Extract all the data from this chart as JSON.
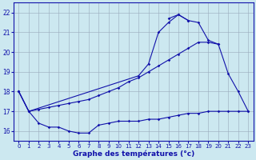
{
  "title": "Graphe des températures (°c)",
  "x_values": [
    0,
    1,
    2,
    3,
    4,
    5,
    6,
    7,
    8,
    9,
    10,
    11,
    12,
    13,
    14,
    15,
    16,
    17,
    18,
    19,
    20,
    21,
    22,
    23
  ],
  "line_low": [
    18.0,
    17.0,
    16.4,
    16.2,
    16.2,
    16.0,
    15.9,
    15.9,
    16.3,
    16.4,
    16.5,
    16.5,
    16.5,
    16.6,
    16.6,
    16.7,
    16.8,
    16.9,
    16.9,
    17.0,
    17.0,
    17.0,
    17.0,
    17.0
  ],
  "line_mid": [
    18.0,
    17.0,
    17.1,
    17.2,
    17.3,
    17.4,
    17.5,
    17.6,
    17.8,
    18.0,
    18.2,
    18.5,
    18.7,
    19.0,
    19.3,
    19.6,
    19.9,
    20.2,
    20.5,
    20.5,
    20.4,
    null,
    null,
    null
  ],
  "line_high": [
    18.0,
    17.0,
    null,
    null,
    null,
    null,
    null,
    null,
    null,
    null,
    null,
    null,
    18.8,
    19.4,
    21.0,
    21.5,
    21.9,
    21.6,
    21.5,
    20.6,
    20.4,
    18.9,
    18.0,
    17.0
  ],
  "line_peak": [
    null,
    null,
    null,
    null,
    null,
    null,
    null,
    null,
    null,
    null,
    null,
    null,
    null,
    null,
    null,
    21.7,
    21.9,
    21.6,
    null,
    null,
    null,
    null,
    null,
    null
  ],
  "bg_color": "#cce8f0",
  "grid_color": "#99aabb",
  "line_color": "#1111aa",
  "ylim": [
    15.5,
    22.5
  ],
  "yticks": [
    16,
    17,
    18,
    19,
    20,
    21,
    22
  ],
  "xlim": [
    -0.5,
    23.5
  ]
}
